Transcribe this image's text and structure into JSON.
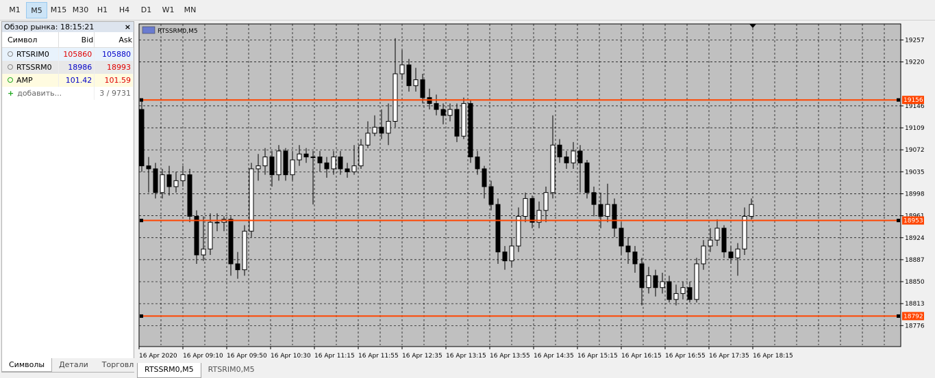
{
  "toolbar": {
    "timeframes": [
      "M1",
      "M5",
      "M15",
      "M30",
      "H1",
      "H4",
      "D1",
      "W1",
      "MN"
    ],
    "active_index": 1
  },
  "market_watch": {
    "title": "Обзор рынка: 18:15:21",
    "columns": [
      "Символ",
      "Bid",
      "Ask"
    ],
    "rows": [
      {
        "symbol": "RTSRIM0",
        "bid": 105860,
        "ask": 105880,
        "bid_color": "#e00000",
        "ask_color": "#0000c8",
        "bg": "#e8f2fc"
      },
      {
        "symbol": "RTSSRM0",
        "bid": 18986,
        "ask": 18993,
        "bid_color": "#0000c8",
        "ask_color": "#e00000",
        "bg": "#e8e8e8"
      },
      {
        "symbol": "AMP",
        "bid": 101.42,
        "ask": 101.59,
        "bid_color": "#0000c8",
        "ask_color": "#e00000",
        "bg": "#fffbe0"
      }
    ],
    "add": "добавить...",
    "count": "3 / 9731",
    "tabs": [
      "Символы",
      "Детали",
      "Торговл"
    ]
  },
  "chart_data": {
    "type": "candlestick",
    "label": "RTSSRM0,M5",
    "ylim": [
      18743,
      19284
    ],
    "yticks": [
      19257,
      19220,
      19146,
      19109,
      19072,
      19035,
      18998,
      18961,
      18924,
      18887,
      18850,
      18813,
      18776
    ],
    "hlines": [
      19156,
      18953,
      18792
    ],
    "hline_color": "#ff4500",
    "categories": [
      "16 Apr 2020",
      "16 Apr 09:10",
      "16 Apr 09:50",
      "16 Apr 10:30",
      "16 Apr 11:15",
      "16 Apr 11:55",
      "16 Apr 12:35",
      "16 Apr 13:15",
      "16 Apr 13:55",
      "16 Apr 14:35",
      "16 Apr 15:15",
      "16 Apr 16:15",
      "16 Apr 16:55",
      "16 Apr 17:35",
      "16 Apr 18:15"
    ],
    "grid": true,
    "open": [
      19140,
      19045,
      19040,
      19000,
      19030,
      19010,
      19020,
      19030,
      18960,
      18895,
      18905,
      18950,
      18950,
      18955,
      18880,
      18870,
      18935,
      19040,
      19045,
      19060,
      19030,
      19070,
      19030,
      19055,
      19065,
      19060,
      19060,
      19050,
      19040,
      19060,
      19040,
      19035,
      19045,
      19080,
      19100,
      19110,
      19100,
      19120,
      19200,
      19215,
      19180,
      19190,
      19160,
      19150,
      19140,
      19130,
      19140,
      19095,
      19150,
      19060,
      19040,
      19010,
      18980,
      18900,
      18885,
      18910,
      18960,
      18990,
      18950,
      18970,
      19000,
      19080,
      19060,
      19050,
      19070,
      19050,
      19000,
      18980,
      18960,
      18980,
      18940,
      18910,
      18900,
      18880,
      18840,
      18860,
      18840,
      18850,
      18820,
      18830,
      18840,
      18820,
      18880,
      18910,
      18920,
      18940,
      18900,
      18890,
      18905,
      18960
    ],
    "high": [
      19155,
      19060,
      19050,
      19040,
      19045,
      19035,
      19045,
      19040,
      18970,
      18960,
      18965,
      18965,
      18960,
      18960,
      18900,
      18945,
      19050,
      19065,
      19075,
      19070,
      19080,
      19075,
      19070,
      19080,
      19075,
      19070,
      19070,
      19060,
      19070,
      19070,
      19050,
      19080,
      19090,
      19120,
      19130,
      19140,
      19150,
      19260,
      19240,
      19225,
      19210,
      19200,
      19175,
      19165,
      19150,
      19150,
      19150,
      19160,
      19155,
      19070,
      19045,
      19020,
      18990,
      18910,
      18925,
      18975,
      19000,
      18995,
      18985,
      19010,
      19130,
      19090,
      19070,
      19085,
      19080,
      19055,
      19010,
      19000,
      19015,
      18990,
      18950,
      18925,
      18910,
      18890,
      18875,
      18870,
      18865,
      18860,
      18845,
      18850,
      18850,
      18890,
      18920,
      18940,
      18955,
      18945,
      18910,
      18915,
      18975,
      18990
    ],
    "low": [
      19035,
      19000,
      18990,
      18990,
      18995,
      19000,
      19010,
      18950,
      18880,
      18885,
      18895,
      18935,
      18935,
      18860,
      18855,
      18860,
      18925,
      19020,
      19030,
      19010,
      19020,
      19020,
      19020,
      19045,
      19050,
      18980,
      19035,
      19025,
      19030,
      19030,
      19025,
      19030,
      19040,
      19075,
      19095,
      19090,
      19080,
      19110,
      19190,
      19170,
      19170,
      19150,
      19140,
      19130,
      19115,
      19120,
      19085,
      19090,
      19050,
      19030,
      18990,
      18970,
      18880,
      18870,
      18875,
      18900,
      18950,
      18940,
      18940,
      18950,
      18990,
      19050,
      19040,
      19040,
      19000,
      18990,
      18960,
      18940,
      18950,
      18925,
      18895,
      18880,
      18865,
      18810,
      18830,
      18825,
      18830,
      18815,
      18810,
      18820,
      18815,
      18815,
      18870,
      18900,
      18910,
      18890,
      18880,
      18860,
      18895,
      18955
    ],
    "close": [
      19045,
      19040,
      19000,
      19030,
      19010,
      19020,
      19030,
      18960,
      18895,
      18905,
      18950,
      18950,
      18955,
      18880,
      18870,
      18935,
      19040,
      19045,
      19060,
      19030,
      19070,
      19030,
      19055,
      19065,
      19060,
      19060,
      19050,
      19040,
      19060,
      19040,
      19035,
      19045,
      19080,
      19100,
      19110,
      19100,
      19120,
      19200,
      19215,
      19180,
      19190,
      19160,
      19150,
      19140,
      19130,
      19140,
      19095,
      19150,
      19060,
      19040,
      19010,
      18980,
      18900,
      18885,
      18910,
      18960,
      18990,
      18950,
      18970,
      19000,
      19080,
      19060,
      19050,
      19070,
      19050,
      19000,
      18980,
      18960,
      18980,
      18940,
      18910,
      18900,
      18880,
      18840,
      18860,
      18840,
      18850,
      18820,
      18830,
      18840,
      18820,
      18880,
      18910,
      18920,
      18940,
      18900,
      18890,
      18905,
      18960,
      18980
    ]
  },
  "chart_tabs": [
    "RTSSRM0,M5",
    "RTSRIM0,M5"
  ]
}
